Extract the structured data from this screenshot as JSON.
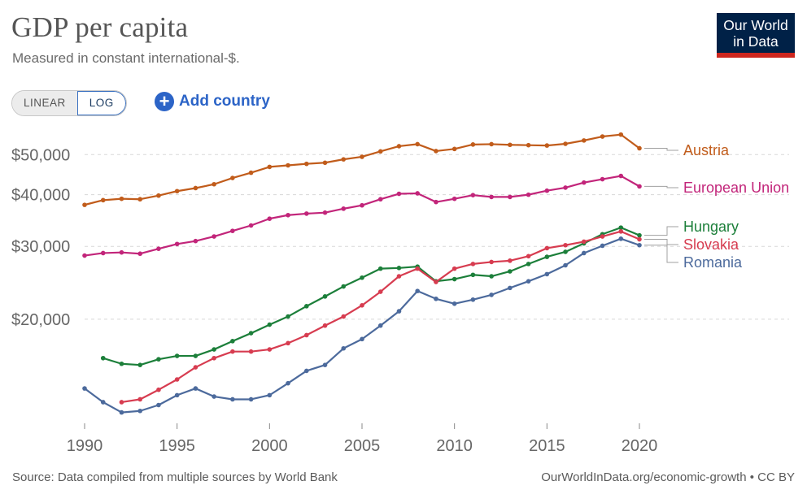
{
  "header": {
    "title": "GDP per capita",
    "subtitle": "Measured in constant international-$.",
    "logo_line1": "Our World",
    "logo_line2": "in Data"
  },
  "controls": {
    "linear_label": "LINEAR",
    "log_label": "LOG",
    "add_country_label": "Add country",
    "selected_scale": "LOG"
  },
  "footer": {
    "source": "Source: Data compiled from multiple sources by World Bank",
    "link": "OurWorldInData.org/economic-growth • CC BY"
  },
  "chart_data": {
    "type": "line",
    "title": "GDP per capita",
    "subtitle": "Measured in constant international-$.",
    "y_scale": "log",
    "ylim": [
      11200,
      60000
    ],
    "xlim": [
      1990,
      2020
    ],
    "x_ticks": [
      1990,
      1995,
      2000,
      2005,
      2010,
      2015,
      2020
    ],
    "y_ticks": [
      20000,
      30000,
      40000,
      50000
    ],
    "y_tick_labels": [
      "$20,000",
      "$30,000",
      "$40,000",
      "$50,000"
    ],
    "grid": "horizontal dashed",
    "legend": "right, labels at line ends",
    "series": [
      {
        "name": "Austria",
        "color": "#c15c1b",
        "x": [
          1990,
          1991,
          1992,
          1993,
          1994,
          1995,
          1996,
          1997,
          1998,
          1999,
          2000,
          2001,
          2002,
          2003,
          2004,
          2005,
          2006,
          2007,
          2008,
          2009,
          2010,
          2011,
          2012,
          2013,
          2014,
          2015,
          2016,
          2017,
          2018,
          2019,
          2020
        ],
        "values": [
          37800,
          38800,
          39100,
          39000,
          39800,
          40800,
          41500,
          42400,
          43900,
          45200,
          46700,
          47100,
          47500,
          47800,
          48700,
          49400,
          50900,
          52400,
          53000,
          51000,
          51600,
          52900,
          53000,
          52800,
          52700,
          52600,
          53100,
          54100,
          55300,
          55900,
          51800
        ]
      },
      {
        "name": "European Union",
        "color": "#c2257a",
        "x": [
          1990,
          1991,
          1992,
          1993,
          1994,
          1995,
          1996,
          1997,
          1998,
          1999,
          2000,
          2001,
          2002,
          2003,
          2004,
          2005,
          2006,
          2007,
          2008,
          2009,
          2010,
          2011,
          2012,
          2013,
          2014,
          2015,
          2016,
          2017,
          2018,
          2019,
          2020
        ],
        "values": [
          28500,
          28900,
          29000,
          28800,
          29600,
          30400,
          30900,
          31700,
          32700,
          33700,
          35000,
          35700,
          36000,
          36200,
          37000,
          37700,
          39000,
          40200,
          40300,
          38400,
          39100,
          39900,
          39500,
          39500,
          40000,
          40900,
          41600,
          42800,
          43600,
          44400,
          41900
        ]
      },
      {
        "name": "Hungary",
        "color": "#1c7f3a",
        "x": [
          1991,
          1992,
          1993,
          1994,
          1995,
          1996,
          1997,
          1998,
          1999,
          2000,
          2001,
          2002,
          2003,
          2004,
          2005,
          2006,
          2007,
          2008,
          2009,
          2010,
          2011,
          2012,
          2013,
          2014,
          2015,
          2016,
          2017,
          2018,
          2019,
          2020
        ],
        "values": [
          16100,
          15600,
          15500,
          16000,
          16300,
          16300,
          16900,
          17700,
          18500,
          19400,
          20300,
          21500,
          22700,
          24000,
          25200,
          26500,
          26600,
          26800,
          24700,
          25000,
          25600,
          25400,
          26100,
          27200,
          28300,
          29100,
          30500,
          32100,
          33300,
          31900
        ]
      },
      {
        "name": "Slovakia",
        "color": "#d73c50",
        "x": [
          1992,
          1993,
          1994,
          1995,
          1996,
          1997,
          1998,
          1999,
          2000,
          2001,
          2002,
          2003,
          2004,
          2005,
          2006,
          2007,
          2008,
          2009,
          2010,
          2011,
          2012,
          2013,
          2014,
          2015,
          2016,
          2017,
          2018,
          2019,
          2020
        ],
        "values": [
          12600,
          12800,
          13500,
          14300,
          15300,
          16100,
          16700,
          16700,
          16900,
          17500,
          18300,
          19300,
          20300,
          21600,
          23300,
          25400,
          26500,
          24600,
          26500,
          27200,
          27500,
          27700,
          28400,
          29700,
          30200,
          30800,
          31700,
          32600,
          31200
        ]
      },
      {
        "name": "Romania",
        "color": "#4c6a9c",
        "x": [
          1990,
          1991,
          1992,
          1993,
          1994,
          1995,
          1996,
          1997,
          1998,
          1999,
          2000,
          2001,
          2002,
          2003,
          2004,
          2005,
          2006,
          2007,
          2008,
          2009,
          2010,
          2011,
          2012,
          2013,
          2014,
          2015,
          2016,
          2017,
          2018,
          2019,
          2020
        ],
        "values": [
          13600,
          12600,
          11900,
          12000,
          12400,
          13100,
          13600,
          13000,
          12800,
          12800,
          13100,
          14000,
          15000,
          15500,
          17000,
          17900,
          19300,
          20900,
          23400,
          22400,
          21800,
          22300,
          22900,
          23800,
          24700,
          25700,
          27000,
          28900,
          30100,
          31300,
          30200
        ]
      }
    ]
  }
}
